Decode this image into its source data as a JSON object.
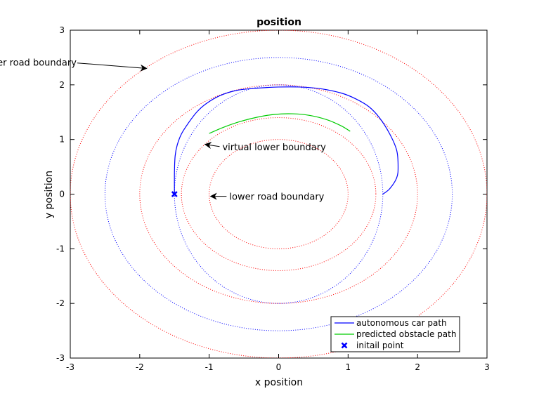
{
  "chart_data": {
    "type": "line",
    "title": "position",
    "xlabel": "x position",
    "ylabel": "y position",
    "xlim": [
      -3,
      3
    ],
    "ylim": [
      -3,
      3
    ],
    "xticks": [
      -3,
      -2,
      -1,
      0,
      1,
      2,
      3
    ],
    "yticks": [
      -3,
      -2,
      -1,
      0,
      1,
      2,
      3
    ],
    "grid": false,
    "legend_position": "bottom-right",
    "boundaries": [
      {
        "role": "higher road boundary",
        "radius_x": 3.0,
        "radius_y": 3.0,
        "color": "#ff0000",
        "style": "dotted"
      },
      {
        "role": "outer virtual boundary",
        "radius_x": 2.5,
        "radius_y": 2.5,
        "color": "#0000ff",
        "style": "dotted"
      },
      {
        "role": "middle red boundary",
        "radius_x": 2.0,
        "radius_y": 2.0,
        "color": "#ff0000",
        "style": "dotted"
      },
      {
        "role": "virtual lower boundary",
        "radius_x": 1.5,
        "radius_y": 2.0,
        "color": "#0000ff",
        "style": "dotted"
      },
      {
        "role": "inner red boundary",
        "radius_x": 1.4,
        "radius_y": 1.4,
        "color": "#ff0000",
        "style": "dotted"
      },
      {
        "role": "lower road boundary",
        "radius_x": 1.0,
        "radius_y": 1.0,
        "color": "#ff0000",
        "style": "dotted"
      }
    ],
    "series": [
      {
        "name": "autonomous car path",
        "color": "#0000ff",
        "style": "solid",
        "x": [
          -1.5,
          -1.5,
          -1.49,
          -1.46,
          -1.4,
          -1.3,
          -1.18,
          -1.05,
          -0.85,
          -0.6,
          -0.3,
          0.0,
          0.3,
          0.6,
          0.9,
          1.1,
          1.3,
          1.45,
          1.6,
          1.7,
          1.72,
          1.7,
          1.6,
          1.5
        ],
        "y": [
          0.0,
          0.4,
          0.7,
          0.9,
          1.1,
          1.3,
          1.5,
          1.65,
          1.8,
          1.9,
          1.94,
          1.96,
          1.96,
          1.93,
          1.85,
          1.75,
          1.6,
          1.4,
          1.1,
          0.8,
          0.5,
          0.3,
          0.1,
          0.0
        ]
      },
      {
        "name": "predicted obstacle path",
        "color": "#00cc00",
        "style": "solid",
        "x": [
          -1.0,
          -0.8,
          -0.55,
          -0.3,
          -0.05,
          0.2,
          0.45,
          0.7,
          0.9,
          1.03
        ],
        "y": [
          1.11,
          1.22,
          1.33,
          1.41,
          1.46,
          1.47,
          1.44,
          1.36,
          1.25,
          1.15
        ]
      }
    ],
    "points": [
      {
        "name": "initail point",
        "x": -1.5,
        "y": 0.0,
        "color": "#0000ff",
        "marker": "x"
      }
    ],
    "annotations": [
      {
        "id": "higher",
        "text": "higer road boundary",
        "tail": [
          -2.9,
          2.4
        ],
        "head": [
          -1.9,
          2.3
        ]
      },
      {
        "id": "virtual",
        "text": "virtual lower boundary",
        "tail": [
          -0.85,
          0.87
        ],
        "head": [
          -1.06,
          0.91
        ]
      },
      {
        "id": "lower",
        "text": "lower road boundary",
        "tail": [
          -0.75,
          -0.04
        ],
        "head": [
          -0.98,
          -0.04
        ]
      }
    ]
  }
}
